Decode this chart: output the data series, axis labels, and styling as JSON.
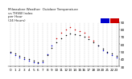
{
  "title": "Milwaukee Weather  Outdoor Temperature\nvs THSW Index\nper Hour\n(24 Hours)",
  "legend_colors": [
    "#0000cc",
    "#cc0000"
  ],
  "background_color": "#ffffff",
  "plot_bg_color": "#ffffff",
  "grid_color": "#aaaaaa",
  "hours": [
    0,
    1,
    2,
    3,
    4,
    5,
    6,
    7,
    8,
    9,
    10,
    11,
    12,
    13,
    14,
    15,
    16,
    17,
    18,
    19,
    20,
    21,
    22,
    23
  ],
  "temp_values": [
    50,
    47,
    44,
    42,
    40,
    38,
    36,
    38,
    45,
    55,
    63,
    68,
    72,
    74,
    73,
    72,
    70,
    67,
    63,
    58,
    54,
    50,
    47,
    44
  ],
  "thsw_values": [
    48,
    45,
    42,
    40,
    38,
    36,
    34,
    36,
    46,
    58,
    68,
    75,
    80,
    83,
    80,
    78,
    75,
    70,
    65,
    58,
    52,
    48,
    45,
    42
  ],
  "temp_color": "#000000",
  "thsw_high_color": "#cc0000",
  "thsw_low_color": "#0000cc",
  "thsw_threshold": 65,
  "ylim": [
    30,
    90
  ],
  "ytick_values": [
    30,
    40,
    50,
    60,
    70,
    80,
    90
  ],
  "xlabel_fontsize": 3.0,
  "ylabel_fontsize": 3.0,
  "title_fontsize": 3.0,
  "marker_size": 1.2,
  "grid_linewidth": 0.3,
  "spine_linewidth": 0.3
}
